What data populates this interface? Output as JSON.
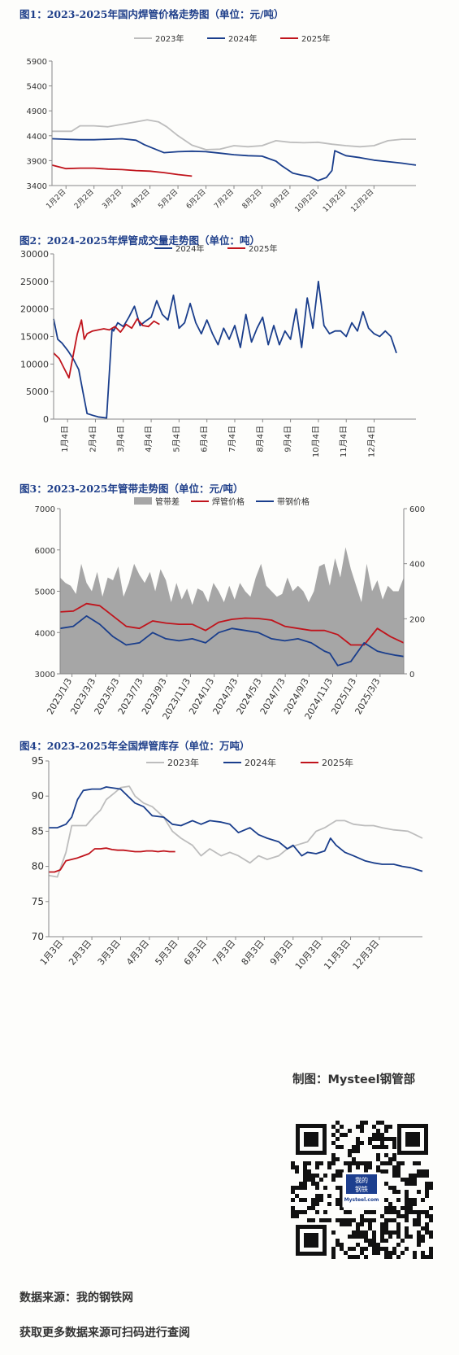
{
  "charts": {
    "c1": {
      "title": "图1：2023-2025年国内焊管价格走势图（单位：元/吨）"
    },
    "c2": {
      "title": "图2：2024-2025年焊管成交量走势图（单位：吨）"
    },
    "c3": {
      "title": "图3：2023-2025年管带走势图（单位：元/吨）"
    },
    "c4": {
      "title": "图4：2023-2025年全国焊管库存（单位：万吨）"
    }
  },
  "footer": {
    "credit": "制图：Mysteel钢管部",
    "source": "数据来源：我的钢铁网",
    "more": "获取更多数据来源可扫码进行查阅",
    "qr_logo_top": "我的",
    "qr_logo_mid": "钢铁",
    "qr_logo_bottom": "Mysteel.com"
  },
  "chart_data": [
    {
      "type": "line",
      "title": "图1：2023-2025年国内焊管价格走势图（单位：元/吨）",
      "categories": [
        "1月2日",
        "2月2日",
        "3月2日",
        "4月2日",
        "5月2日",
        "6月2日",
        "7月2日",
        "8月2日",
        "9月2日",
        "10月2日",
        "11月2日",
        "12月2日"
      ],
      "ylim": [
        3400,
        5900
      ],
      "yticks": [
        3400,
        3900,
        4400,
        4900,
        5400,
        5900
      ],
      "grid": false,
      "legend": "top",
      "series": [
        {
          "name": "2023年",
          "color": "#bdbdbd",
          "x": [
            0,
            0.7,
            1,
            1.5,
            2,
            2.5,
            3,
            3.4,
            3.8,
            4.1,
            4.5,
            5,
            5.5,
            6,
            6.5,
            7,
            7.5,
            8,
            8.5,
            9,
            9.5,
            10,
            10.5,
            11,
            11.5,
            12,
            12.5,
            13
          ],
          "values": [
            4490,
            4490,
            4600,
            4600,
            4580,
            4630,
            4680,
            4720,
            4680,
            4580,
            4400,
            4210,
            4120,
            4130,
            4200,
            4180,
            4200,
            4300,
            4270,
            4260,
            4270,
            4230,
            4200,
            4180,
            4200,
            4300,
            4330,
            4330
          ]
        },
        {
          "name": "2024年",
          "color": "#1a3e8c",
          "x": [
            0,
            0.5,
            1,
            1.5,
            2,
            2.5,
            3,
            3.3,
            3.6,
            4,
            4.5,
            5,
            5.5,
            6,
            6.5,
            7,
            7.5,
            8,
            8.2,
            8.6,
            8.9,
            9.2,
            9.5,
            9.8,
            10,
            10.1,
            10.5,
            11,
            11.5,
            12,
            12.5,
            13
          ],
          "values": [
            4340,
            4330,
            4320,
            4320,
            4330,
            4340,
            4310,
            4220,
            4150,
            4060,
            4080,
            4090,
            4080,
            4050,
            4020,
            4000,
            3990,
            3890,
            3800,
            3650,
            3610,
            3580,
            3500,
            3560,
            3700,
            4100,
            4000,
            3960,
            3910,
            3880,
            3850,
            3810
          ]
        },
        {
          "name": "2025年",
          "color": "#c0141c",
          "x": [
            0,
            0.5,
            1,
            1.5,
            2,
            2.5,
            3,
            3.5,
            4,
            4.5,
            5
          ],
          "values": [
            3810,
            3740,
            3750,
            3750,
            3730,
            3720,
            3700,
            3690,
            3660,
            3620,
            3590
          ]
        }
      ]
    },
    {
      "type": "line",
      "title": "图2：2024-2025年焊管成交量走势图（单位：吨）",
      "categories": [
        "1月4日",
        "2月4日",
        "3月4日",
        "4月4日",
        "5月4日",
        "6月4日",
        "7月4日",
        "8月4日",
        "9月4日",
        "10月4日",
        "11月4日",
        "12月4日"
      ],
      "ylim": [
        0,
        30000
      ],
      "yticks": [
        0,
        5000,
        10000,
        15000,
        20000,
        25000,
        30000
      ],
      "grid": false,
      "legend": "top",
      "series": [
        {
          "name": "2024年",
          "color": "#1a3e8c",
          "x": [
            0,
            0.15,
            0.3,
            0.5,
            0.7,
            0.9,
            1.05,
            1.2,
            1.4,
            1.6,
            1.9,
            2.1,
            2.15,
            2.3,
            2.5,
            2.7,
            2.9,
            3.1,
            3.3,
            3.5,
            3.7,
            3.9,
            4.1,
            4.3,
            4.5,
            4.7,
            4.9,
            5.1,
            5.3,
            5.5,
            5.7,
            5.9,
            6.1,
            6.3,
            6.5,
            6.7,
            6.9,
            7.1,
            7.3,
            7.5,
            7.7,
            7.9,
            8.1,
            8.3,
            8.5,
            8.7,
            8.9,
            9.1,
            9.3,
            9.5,
            9.7,
            9.9,
            10.1,
            10.3,
            10.5,
            10.7,
            10.9,
            11.1,
            11.3,
            11.5,
            11.7,
            11.9,
            12.1,
            12.3
          ],
          "values": [
            18200,
            14500,
            13800,
            12500,
            11000,
            9000,
            5000,
            1000,
            700,
            400,
            200,
            16500,
            16000,
            17500,
            16800,
            18500,
            20500,
            17000,
            17800,
            18500,
            21500,
            19000,
            18000,
            22500,
            16500,
            17500,
            21000,
            17500,
            15500,
            18000,
            15500,
            13500,
            16500,
            14500,
            17000,
            13000,
            19000,
            14000,
            16500,
            18500,
            13500,
            17000,
            13500,
            16000,
            14500,
            20000,
            13000,
            22000,
            16500,
            25000,
            17000,
            15500,
            16000,
            16000,
            15000,
            17500,
            16000,
            19500,
            16500,
            15500,
            15000,
            16000,
            15000,
            12000
          ]
        },
        {
          "name": "2025年",
          "color": "#c0141c",
          "x": [
            0,
            0.2,
            0.4,
            0.55,
            0.7,
            0.85,
            1.0,
            1.1,
            1.2,
            1.4,
            1.6,
            1.8,
            2.0,
            2.2,
            2.4,
            2.6,
            2.8,
            3.0,
            3.2,
            3.4,
            3.6,
            3.8
          ],
          "values": [
            12000,
            11000,
            9000,
            7500,
            11500,
            15500,
            18000,
            14500,
            15500,
            16000,
            16200,
            16400,
            16200,
            16800,
            15800,
            17200,
            16500,
            18200,
            17000,
            16800,
            17800,
            17200
          ]
        }
      ]
    },
    {
      "type": "area",
      "title": "图3：2023-2025年管带走势图（单位：元/吨）",
      "categories": [
        "2023/1/3",
        "2023/3/3",
        "2023/5/3",
        "2023/7/3",
        "2023/9/3",
        "2023/11/3",
        "2024/1/3",
        "2024/3/3",
        "2024/5/3",
        "2024/7/3",
        "2024/9/3",
        "2024/11/3",
        "2025/1/3",
        "2025/3/3"
      ],
      "ylim": [
        3000,
        7000
      ],
      "yticks": [
        3000,
        4000,
        5000,
        6000,
        7000
      ],
      "y2lim": [
        0,
        600
      ],
      "y2ticks": [
        0,
        200,
        400,
        600
      ],
      "grid": false,
      "legend": "top",
      "series": [
        {
          "name": "管带差",
          "color": "#a6a6a6",
          "axis": "right",
          "type": "area",
          "x": [
            0,
            0.2,
            0.4,
            0.6,
            0.8,
            1,
            1.2,
            1.4,
            1.6,
            1.8,
            2,
            2.2,
            2.4,
            2.6,
            2.8,
            3,
            3.2,
            3.4,
            3.6,
            3.8,
            4,
            4.2,
            4.4,
            4.6,
            4.8,
            5,
            5.2,
            5.4,
            5.6,
            5.8,
            6,
            6.2,
            6.4,
            6.6,
            6.8,
            7,
            7.2,
            7.4,
            7.6,
            7.8,
            8,
            8.2,
            8.4,
            8.6,
            8.8,
            9,
            9.2,
            9.4,
            9.6,
            9.8,
            10,
            10.2,
            10.4,
            10.6,
            10.8,
            11,
            11.2,
            11.4,
            11.6,
            11.8,
            12,
            12.2,
            12.4,
            12.6,
            12.8,
            13
          ],
          "values": [
            350,
            330,
            320,
            290,
            400,
            330,
            300,
            370,
            280,
            350,
            340,
            390,
            280,
            330,
            400,
            360,
            330,
            370,
            300,
            380,
            340,
            260,
            330,
            270,
            310,
            250,
            310,
            300,
            260,
            330,
            300,
            260,
            320,
            270,
            330,
            300,
            280,
            350,
            400,
            320,
            300,
            280,
            290,
            350,
            300,
            320,
            300,
            260,
            300,
            390,
            400,
            320,
            420,
            350,
            460,
            380,
            320,
            260,
            400,
            300,
            340,
            270,
            320,
            300,
            300,
            350
          ]
        },
        {
          "name": "焊管价格",
          "color": "#c0141c",
          "axis": "left",
          "type": "line",
          "x": [
            0,
            0.5,
            1,
            1.5,
            2,
            2.5,
            3,
            3.5,
            4,
            4.5,
            5,
            5.5,
            6,
            6.5,
            7,
            7.5,
            8,
            8.5,
            9,
            9.5,
            10,
            10.5,
            11,
            11.5,
            12,
            12.5,
            13
          ],
          "values": [
            4500,
            4520,
            4700,
            4650,
            4400,
            4150,
            4100,
            4280,
            4230,
            4200,
            4200,
            4050,
            4250,
            4320,
            4350,
            4340,
            4300,
            4150,
            4100,
            4050,
            4050,
            3950,
            3700,
            3700,
            4100,
            3900,
            3750
          ]
        },
        {
          "name": "带钢价格",
          "color": "#1a3e8c",
          "axis": "left",
          "type": "line",
          "x": [
            0,
            0.5,
            1,
            1.5,
            2,
            2.5,
            3,
            3.5,
            4,
            4.5,
            5,
            5.5,
            6,
            6.5,
            7,
            7.5,
            8,
            8.5,
            9,
            9.5,
            10,
            10.2,
            10.5,
            11,
            11.5,
            12,
            12.3,
            12.7,
            13
          ],
          "values": [
            4100,
            4150,
            4400,
            4200,
            3900,
            3700,
            3750,
            4000,
            3850,
            3800,
            3850,
            3750,
            4000,
            4100,
            4050,
            4000,
            3850,
            3800,
            3850,
            3750,
            3550,
            3500,
            3200,
            3300,
            3750,
            3550,
            3500,
            3450,
            3420
          ]
        }
      ]
    },
    {
      "type": "line",
      "title": "图4：2023-2025年全国焊管库存（单位：万吨）",
      "categories": [
        "1月3日",
        "2月3日",
        "3月3日",
        "4月3日",
        "5月3日",
        "6月3日",
        "7月3日",
        "8月3日",
        "9月3日",
        "10月3日",
        "11月3日",
        "12月3日"
      ],
      "ylim": [
        70,
        95
      ],
      "yticks": [
        70,
        75,
        80,
        85,
        90,
        95
      ],
      "grid": false,
      "legend": "top",
      "series": [
        {
          "name": "2023年",
          "color": "#bdbdbd",
          "x": [
            0,
            0.3,
            0.6,
            0.8,
            1,
            1.3,
            1.6,
            1.8,
            2,
            2.3,
            2.5,
            2.8,
            3,
            3.3,
            3.6,
            4,
            4.3,
            4.6,
            5,
            5.3,
            5.6,
            6,
            6.3,
            6.6,
            7,
            7.3,
            7.6,
            8,
            8.3,
            8.6,
            9,
            9.3,
            9.6,
            10,
            10.3,
            10.6,
            11,
            11.3,
            11.6,
            12,
            12.5,
            13
          ],
          "values": [
            78.7,
            78.5,
            82,
            85.8,
            85.8,
            85.8,
            87.2,
            88,
            89.5,
            90.5,
            91.2,
            91.4,
            90,
            89,
            88.5,
            87,
            85,
            84,
            83,
            81.5,
            82.5,
            81.5,
            82,
            81.5,
            80.5,
            81.5,
            81,
            81.5,
            82.5,
            83,
            83.5,
            85,
            85.5,
            86.5,
            86.5,
            86,
            85.8,
            85.8,
            85.5,
            85.2,
            85,
            84
          ]
        },
        {
          "name": "2024年",
          "color": "#1a3e8c",
          "x": [
            0,
            0.3,
            0.6,
            0.8,
            1,
            1.2,
            1.5,
            1.8,
            2,
            2.5,
            3,
            3.3,
            3.6,
            4,
            4.3,
            4.6,
            5,
            5.3,
            5.6,
            6,
            6.3,
            6.6,
            7,
            7.3,
            7.6,
            8,
            8.3,
            8.5,
            8.8,
            9,
            9.3,
            9.6,
            9.8,
            10,
            10.3,
            10.6,
            11,
            11.3,
            11.6,
            12,
            12.3,
            12.6,
            13
          ],
          "values": [
            85.5,
            85.5,
            86,
            87,
            89.5,
            90.8,
            91,
            91,
            91.3,
            91,
            89,
            88.5,
            87.2,
            87,
            86,
            85.8,
            86.5,
            86,
            86.5,
            86.3,
            86,
            84.8,
            85.5,
            84.5,
            84,
            83.5,
            82.5,
            83,
            81.5,
            82,
            81.8,
            82.2,
            84,
            83,
            82,
            81.5,
            80.8,
            80.5,
            80.3,
            80.3,
            80,
            79.8,
            79.3
          ]
        },
        {
          "name": "2025年",
          "color": "#c0141c",
          "x": [
            0,
            0.2,
            0.4,
            0.6,
            0.8,
            1,
            1.2,
            1.4,
            1.6,
            1.8,
            2,
            2.2,
            2.4,
            2.6,
            2.8,
            3,
            3.2,
            3.4,
            3.6,
            3.8,
            4,
            4.2,
            4.4
          ],
          "values": [
            79.2,
            79.2,
            79.5,
            80.8,
            81,
            81.2,
            81.5,
            81.8,
            82.5,
            82.5,
            82.6,
            82.4,
            82.3,
            82.3,
            82.2,
            82.1,
            82.1,
            82.2,
            82.2,
            82.1,
            82.2,
            82.1,
            82.1
          ]
        }
      ]
    }
  ]
}
